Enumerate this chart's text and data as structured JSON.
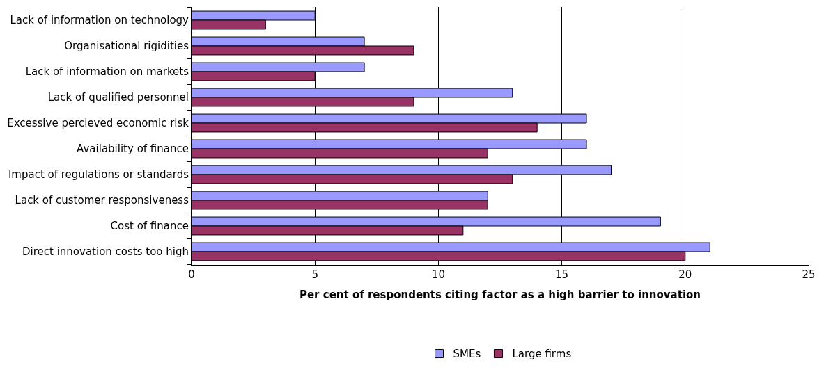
{
  "chart_data": {
    "type": "bar",
    "orientation": "horizontal",
    "xlabel": "Per cent of respondents citing factor as a high barrier to innovation",
    "categories": [
      "Lack of information on technology",
      "Organisational rigidities",
      "Lack of information on markets",
      "Lack of qualified personnel",
      "Excessive percieved economic risk",
      "Availability of finance",
      "Impact of regulations or standards",
      "Lack of customer responsiveness",
      "Cost of finance",
      "Direct innovation costs too high"
    ],
    "series": [
      {
        "name": "SMEs",
        "color": "#9999ff",
        "values": [
          5,
          7,
          7,
          13,
          16,
          16,
          17,
          12,
          19,
          21
        ]
      },
      {
        "name": "Large firms",
        "color": "#993366",
        "values": [
          3,
          9,
          5,
          9,
          14,
          12,
          13,
          12,
          11,
          20
        ]
      }
    ],
    "xlim": [
      0,
      25
    ],
    "xticks": [
      0,
      5,
      10,
      15,
      20,
      25
    ],
    "grid": "x",
    "legend": "bottom"
  }
}
